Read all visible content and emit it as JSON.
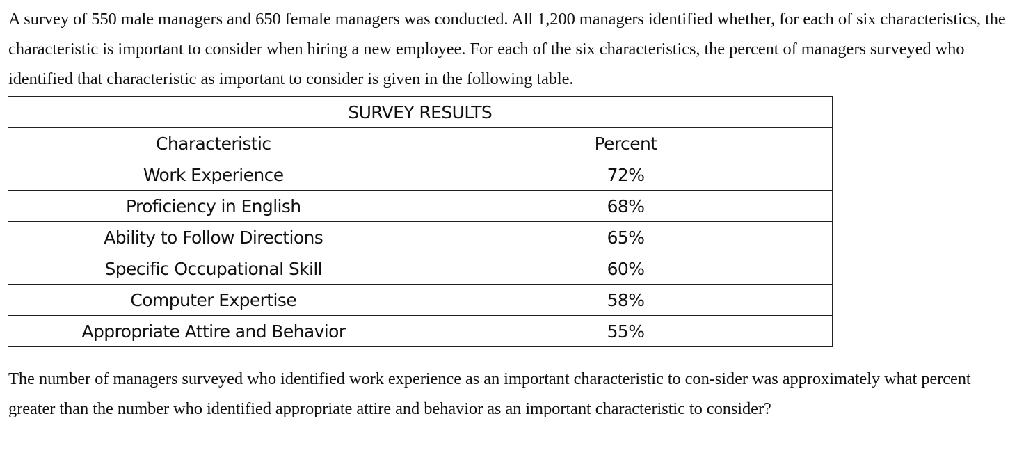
{
  "intro": "A survey of 550 male managers and 650 female managers was conducted. All 1,200 managers identified whether, for each of six characteristics, the characteristic is important to consider when hiring a new employee. For each of the six characteristics, the percent of managers surveyed who identified that characteristic as important to consider is given in the following table.",
  "table": {
    "title": "SURVEY RESULTS",
    "headers": {
      "characteristic": "Characteristic",
      "percent": "Percent"
    },
    "rows": [
      {
        "characteristic": "Work Experience",
        "percent": "72%"
      },
      {
        "characteristic": "Proficiency in English",
        "percent": "68%"
      },
      {
        "characteristic": "Ability to Follow Directions",
        "percent": "65%"
      },
      {
        "characteristic": "Specific Occupational Skill",
        "percent": "60%"
      },
      {
        "characteristic": "Computer Expertise",
        "percent": "58%"
      },
      {
        "characteristic": "Appropriate Attire and Behavior",
        "percent": "55%"
      }
    ]
  },
  "question": "The number of managers surveyed who identified work experience as an important characteristic to con-sider was approximately what percent greater than the number who identified appropriate attire and behavior as an important characteristic to consider?"
}
